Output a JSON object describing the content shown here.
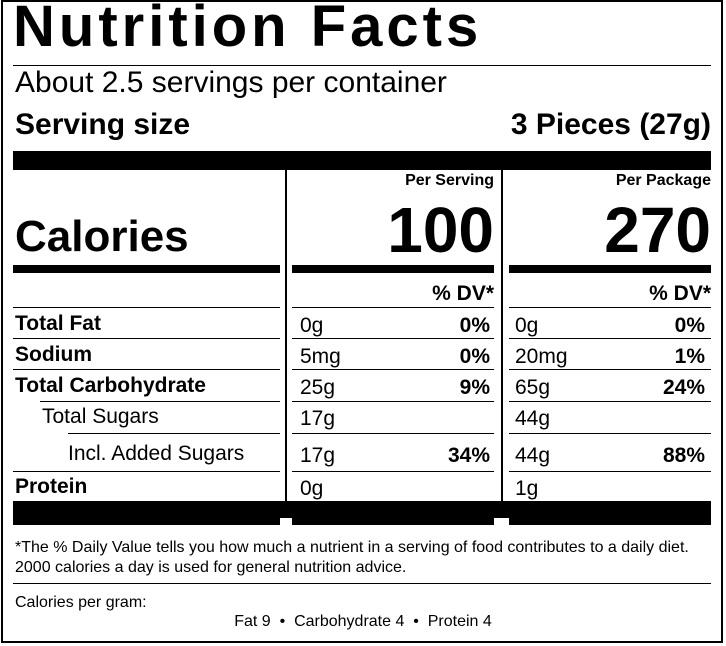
{
  "title": "Nutrition Facts",
  "servings_per_container": "About 2.5 servings per container",
  "serving_size_label": "Serving size",
  "serving_size_value": "3 Pieces (27g)",
  "per_serving_label": "Per Serving",
  "per_package_label": "Per Package",
  "calories_label": "Calories",
  "calories_per_serving": "100",
  "calories_per_package": "270",
  "dv_header": "% DV*",
  "rows": [
    {
      "name": "Total Fat",
      "serving_amount": "0g",
      "serving_dv": "0%",
      "package_amount": "0g",
      "package_dv": "0%"
    },
    {
      "name": "Sodium",
      "serving_amount": "5mg",
      "serving_dv": "0%",
      "package_amount": "20mg",
      "package_dv": "1%"
    },
    {
      "name": "Total Carbohydrate",
      "serving_amount": "25g",
      "serving_dv": "9%",
      "package_amount": "65g",
      "package_dv": "24%"
    },
    {
      "name": "Total Sugars",
      "serving_amount": "17g",
      "serving_dv": "",
      "package_amount": "44g",
      "package_dv": ""
    },
    {
      "name": "Incl. Added Sugars",
      "serving_amount": "17g",
      "serving_dv": "34%",
      "package_amount": "44g",
      "package_dv": "88%"
    },
    {
      "name": "Protein",
      "serving_amount": "0g",
      "serving_dv": "",
      "package_amount": "1g",
      "package_dv": ""
    }
  ],
  "footnote": "*The % Daily Value tells you how much a nutrient in a serving of food contributes to a daily diet. 2000 calories a day is used for general nutrition advice.",
  "calories_per_gram_label": "Calories per gram:",
  "calories_per_gram_values": "Fat 9  •  Carbohydrate 4  •  Protein 4"
}
